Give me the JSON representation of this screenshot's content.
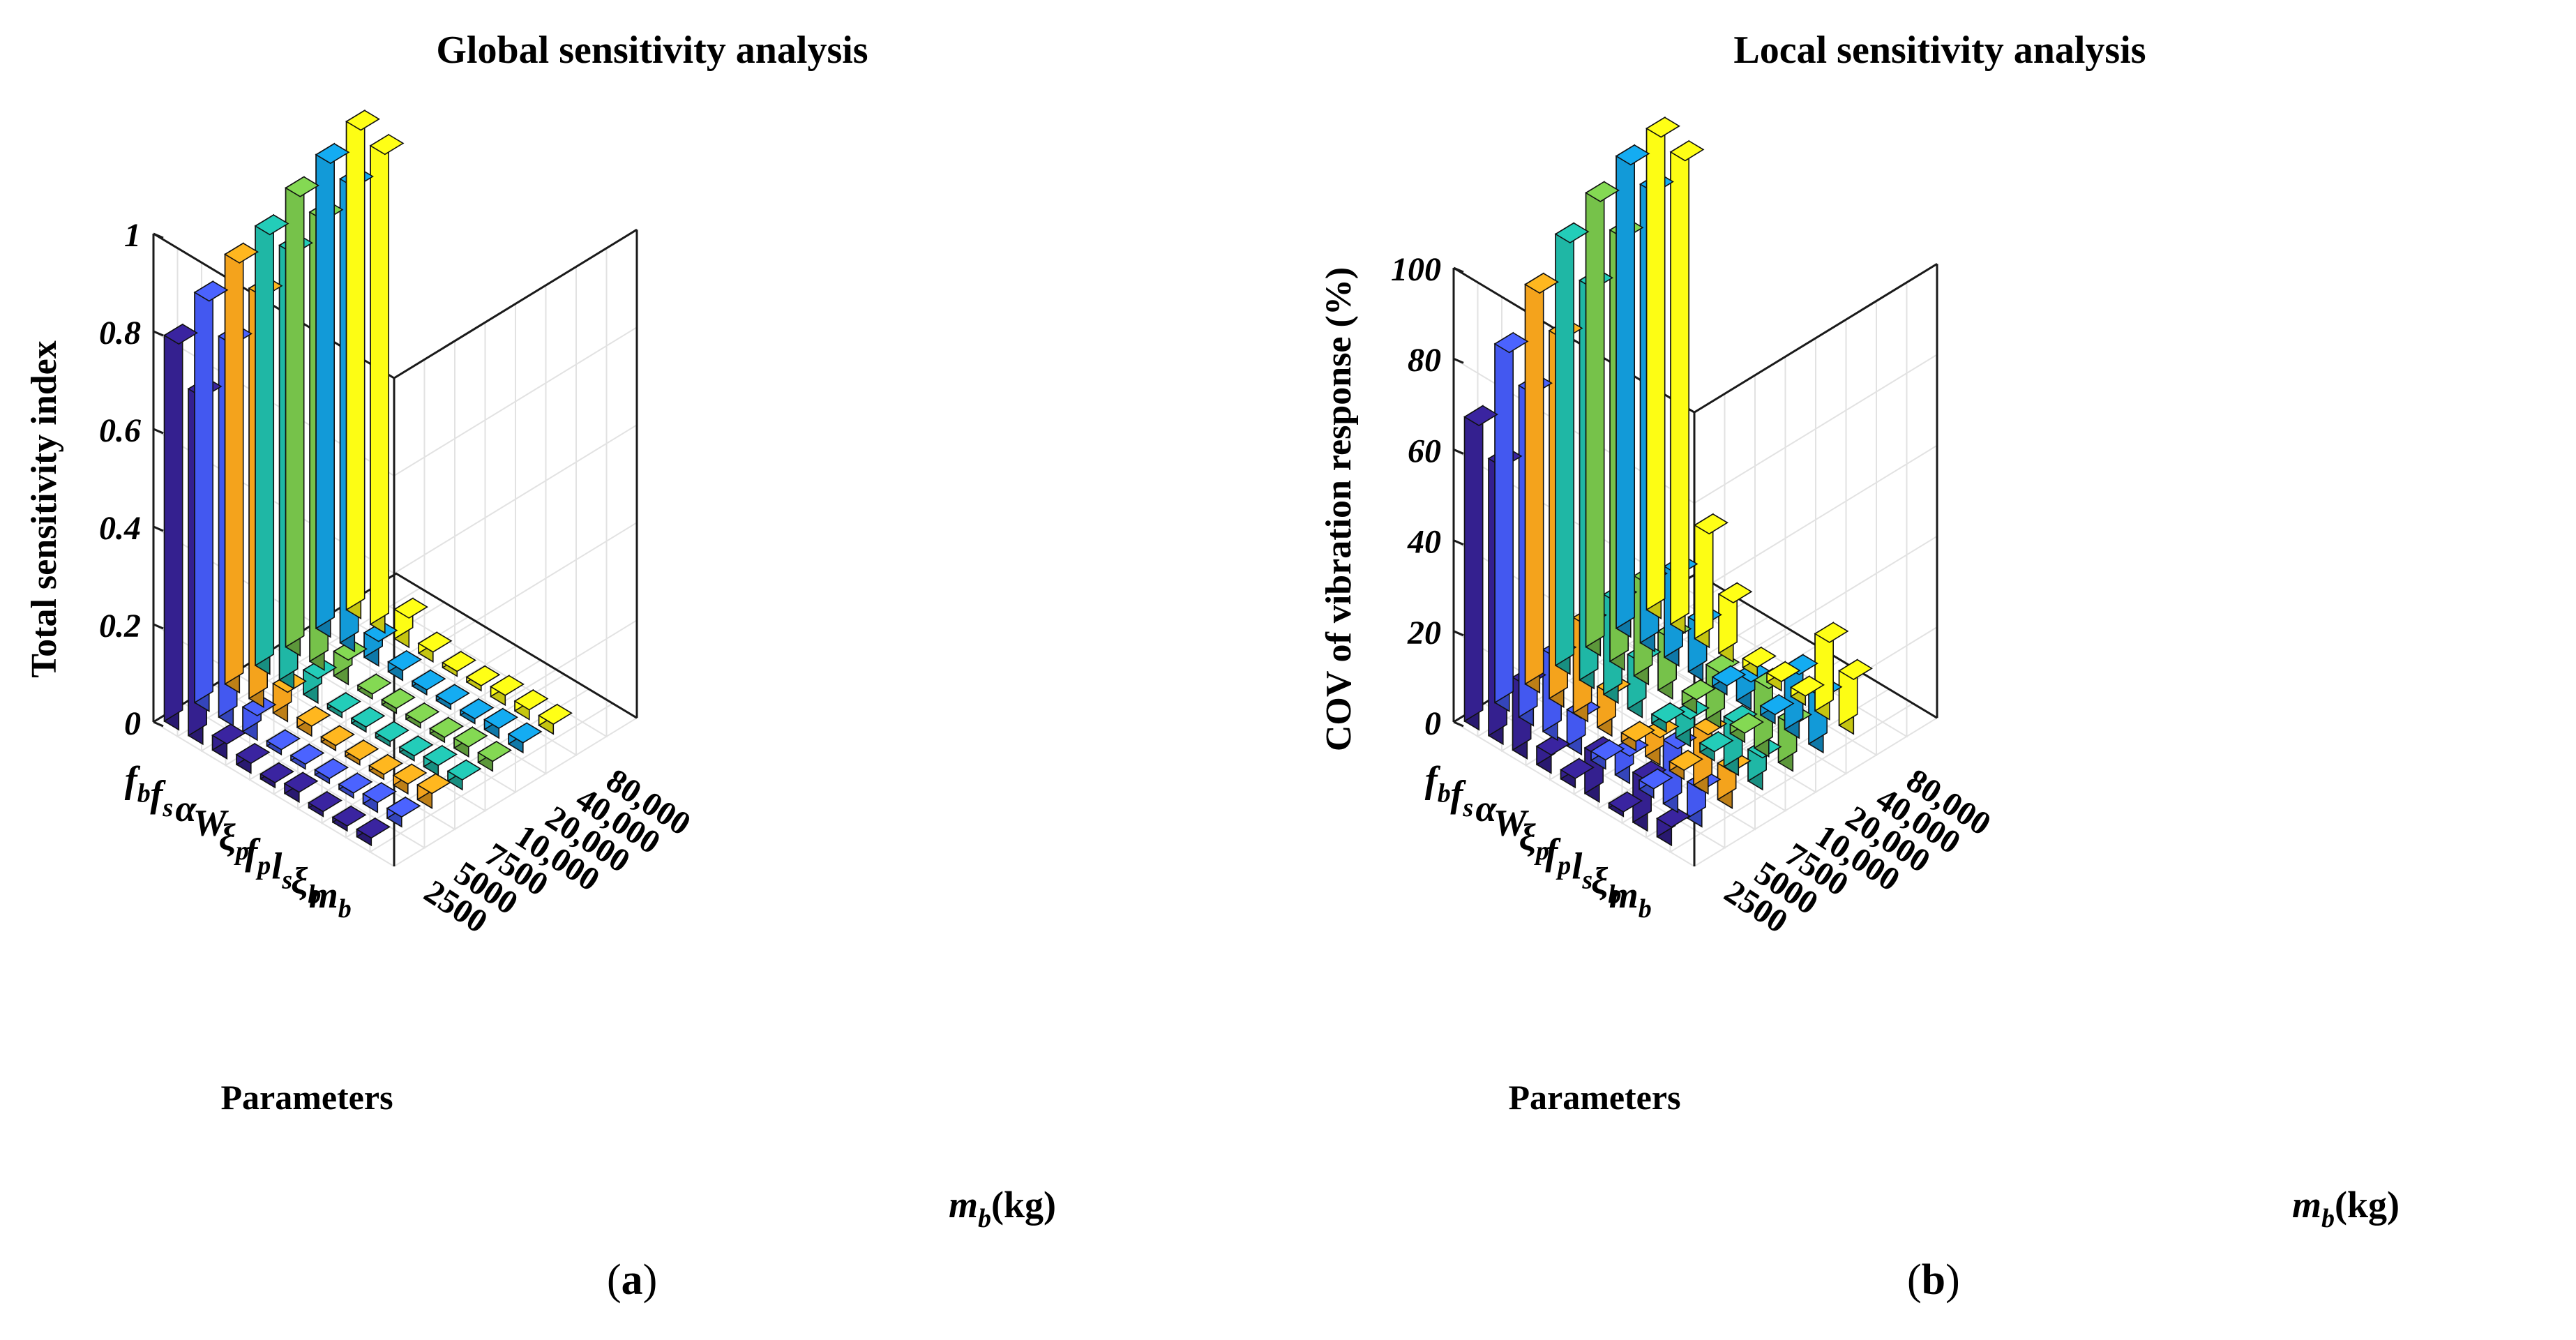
{
  "figure": {
    "colors": [
      "#34208f",
      "#4358f0",
      "#f4a31c",
      "#1fb7a5",
      "#76c24a",
      "#129ad8",
      "#fdfd14"
    ],
    "panel_a_label": "a",
    "panel_b_label": "b"
  },
  "chart_data": [
    {
      "type": "bar3d",
      "title": "Global sensitivity analysis",
      "zlabel": "Total sensitivity index",
      "param_axis_title": "Parameters",
      "mass_axis_title": "m",
      "mass_axis_sub": "b",
      "mass_axis_unit": "(kg)",
      "zlim": [
        0,
        1
      ],
      "zticks": [
        "0",
        "0.2",
        "0.4",
        "0.6",
        "0.8",
        "1"
      ],
      "zticks_values": [
        0,
        0.2,
        0.4,
        0.6,
        0.8,
        1.0
      ],
      "parameters": [
        {
          "main": "f",
          "sub": "b"
        },
        {
          "main": "f",
          "sub": "s"
        },
        {
          "main": "α",
          "sub": ""
        },
        {
          "main": "W",
          "sub": ""
        },
        {
          "main": "ξ",
          "sub": "p"
        },
        {
          "main": "f",
          "sub": "p"
        },
        {
          "main": "l",
          "sub": "s"
        },
        {
          "main": "ξ",
          "sub": "b"
        },
        {
          "main": "m",
          "sub": "b"
        }
      ],
      "masses": [
        "2500",
        "5000",
        "7500",
        "10,000",
        "20,000",
        "40,000",
        "80,000"
      ],
      "series": [
        {
          "name": "2500",
          "values": [
            0.79,
            0.71,
            0.03,
            0.02,
            0.01,
            0.02,
            0.01,
            0.01,
            0.015
          ]
        },
        {
          "name": "5000",
          "values": [
            0.84,
            0.78,
            0.05,
            0.01,
            0.01,
            0.01,
            0.01,
            0.02,
            0.02
          ]
        },
        {
          "name": "7500",
          "values": [
            0.88,
            0.84,
            0.06,
            0.02,
            0.01,
            0.01,
            0.01,
            0.02,
            0.03
          ]
        },
        {
          "name": "10,000",
          "values": [
            0.9,
            0.89,
            0.05,
            0.01,
            0.01,
            0.01,
            0.01,
            0.02,
            0.02
          ]
        },
        {
          "name": "20,000",
          "values": [
            0.94,
            0.92,
            0.05,
            0.01,
            0.01,
            0.01,
            0.01,
            0.02,
            0.02
          ]
        },
        {
          "name": "40,000",
          "values": [
            0.97,
            0.95,
            0.05,
            0.02,
            0.01,
            0.01,
            0.01,
            0.02,
            0.02
          ]
        },
        {
          "name": "80,000",
          "values": [
            1.0,
            0.98,
            0.06,
            0.02,
            0.01,
            0.01,
            0.02,
            0.02,
            0.02
          ]
        }
      ]
    },
    {
      "type": "bar3d",
      "title": "Local sensitivity analysis",
      "zlabel": "COV of vibration response (%)",
      "param_axis_title": "Parameters",
      "mass_axis_title": "m",
      "mass_axis_sub": "b",
      "mass_axis_unit": "(kg)",
      "zlim": [
        0,
        100
      ],
      "zticks": [
        "0",
        "20",
        "40",
        "60",
        "80",
        "100"
      ],
      "zticks_values": [
        0,
        20,
        40,
        60,
        80,
        100
      ],
      "parameters": [
        {
          "main": "f",
          "sub": "b"
        },
        {
          "main": "f",
          "sub": "s"
        },
        {
          "main": "α",
          "sub": ""
        },
        {
          "main": "W",
          "sub": ""
        },
        {
          "main": "ξ",
          "sub": "p"
        },
        {
          "main": "f",
          "sub": "p"
        },
        {
          "main": "l",
          "sub": "s"
        },
        {
          "main": "ξ",
          "sub": "b"
        },
        {
          "main": "m",
          "sub": "b"
        }
      ],
      "masses": [
        "2500",
        "5000",
        "7500",
        "10,000",
        "20,000",
        "40,000",
        "80,000"
      ],
      "series": [
        {
          "name": "2500",
          "values": [
            67,
            61,
            16,
            4,
            2,
            10,
            1,
            11,
            4
          ]
        },
        {
          "name": "5000",
          "values": [
            79,
            73,
            18,
            8,
            2,
            6,
            2,
            14,
            8
          ]
        },
        {
          "name": "7500",
          "values": [
            88,
            81,
            21,
            9,
            2,
            6,
            2,
            13,
            8
          ]
        },
        {
          "name": "10,000",
          "values": [
            95,
            88,
            22,
            12,
            2,
            6,
            2,
            11,
            7
          ]
        },
        {
          "name": "20,000",
          "values": [
            100,
            95,
            22,
            13,
            3,
            12,
            2,
            15,
            10
          ]
        },
        {
          "name": "40,000",
          "values": [
            104,
            101,
            20,
            12,
            2,
            6,
            2,
            14,
            12
          ]
        },
        {
          "name": "80,000",
          "values": [
            106,
            104,
            25,
            13,
            2,
            2,
            2,
            17,
            12
          ]
        }
      ]
    }
  ]
}
